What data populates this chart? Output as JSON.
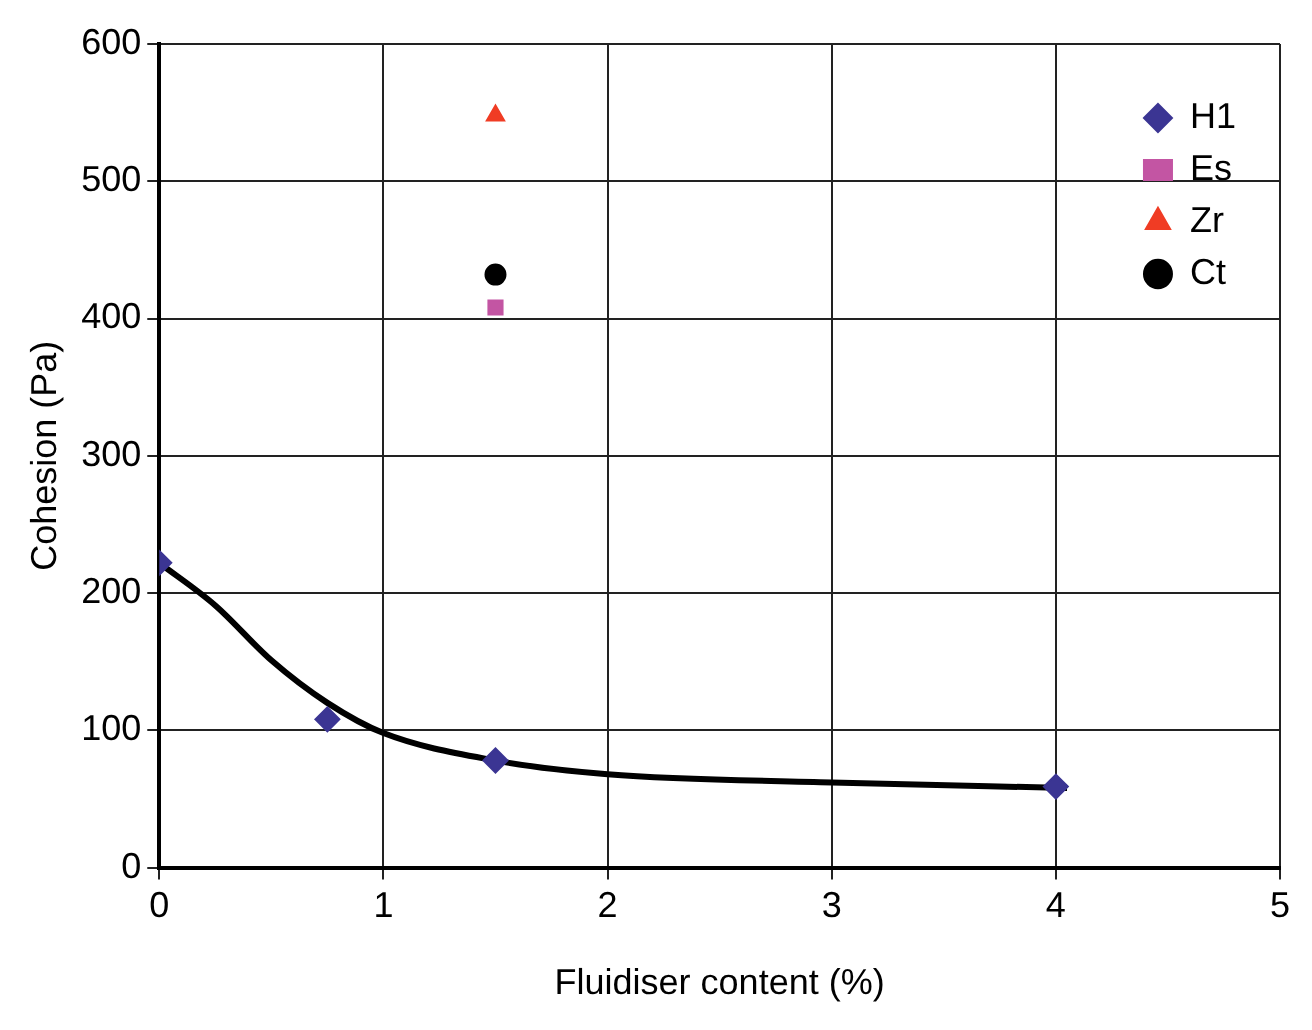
{
  "chart_data": {
    "type": "scatter",
    "xlabel": "Fluidiser content (%)",
    "ylabel": "Cohesion (Pa)",
    "xlim": [
      0,
      5
    ],
    "xticks": [
      0,
      1,
      2,
      3,
      4,
      5
    ],
    "ylim": [
      0,
      600
    ],
    "yticks": [
      0,
      100,
      200,
      300,
      400,
      500,
      600
    ],
    "grid": true,
    "legend": "top right",
    "series": [
      {
        "name": "H1",
        "color": "#3b3593",
        "marker": "diamond",
        "x": [
          0,
          0.75,
          1.5,
          4
        ],
        "values": [
          222,
          108,
          78,
          59
        ]
      },
      {
        "name": "Es",
        "color": "#c355a3",
        "marker": "square",
        "x": [
          1.5
        ],
        "values": [
          408
        ]
      },
      {
        "name": "Zr",
        "color": "#f03c24",
        "marker": "triangle",
        "x": [
          1.5
        ],
        "values": [
          548
        ]
      },
      {
        "name": "Ct",
        "color": "#000000",
        "marker": "circle",
        "x": [
          1.5
        ],
        "values": [
          432
        ]
      },
      {
        "type": "line",
        "color": "#000000",
        "marker": "none",
        "x": [
          0,
          0.25,
          0.5,
          0.75,
          1,
          1.5,
          2,
          3,
          4.05
        ],
        "values": [
          222,
          191,
          151,
          120,
          98,
          78,
          68,
          62,
          58
        ]
      }
    ]
  }
}
